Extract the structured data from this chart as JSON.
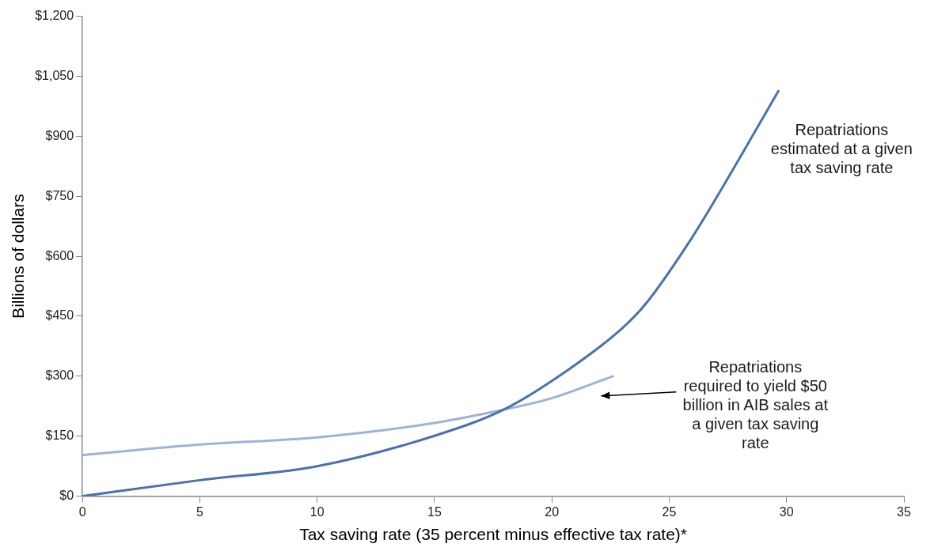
{
  "chart_data": {
    "type": "line",
    "xlabel": "Tax saving rate (35 percent minus effective tax rate)*",
    "ylabel": "Billions of dollars",
    "xlim": [
      0,
      35
    ],
    "xticks": [
      0,
      5,
      10,
      15,
      20,
      25,
      30,
      35
    ],
    "ylim": [
      0,
      1200
    ],
    "yticks": [
      {
        "value": 0,
        "label": "$0"
      },
      {
        "value": 150,
        "label": "$150"
      },
      {
        "value": 300,
        "label": "$300"
      },
      {
        "value": 450,
        "label": "$450"
      },
      {
        "value": 600,
        "label": "$600"
      },
      {
        "value": 750,
        "label": "$750"
      },
      {
        "value": 900,
        "label": "$900"
      },
      {
        "value": 1050,
        "label": "$1,050"
      },
      {
        "value": 1200,
        "label": "$1,200"
      }
    ],
    "grid": false,
    "legend": false,
    "marker": "none",
    "line_style": "solid",
    "series": [
      {
        "name": "Repatriations estimated at a given tax saving rate",
        "color": "#4a72b0",
        "x": [
          0,
          5,
          10,
          15,
          18,
          20.6,
          23,
          24,
          25.9,
          27.4,
          29.65
        ],
        "values": [
          0,
          40,
          75,
          151,
          218,
          312,
          420,
          481,
          640,
          785,
          1013
        ]
      },
      {
        "name": "Repatriations required to yield $50 billion in AIB sales at a given tax saving rate",
        "color": "#9db3d8",
        "x": [
          0,
          5,
          10,
          15,
          18,
          20,
          22.6
        ],
        "values": [
          103,
          129,
          147,
          183,
          217,
          245,
          300
        ]
      }
    ]
  }
}
